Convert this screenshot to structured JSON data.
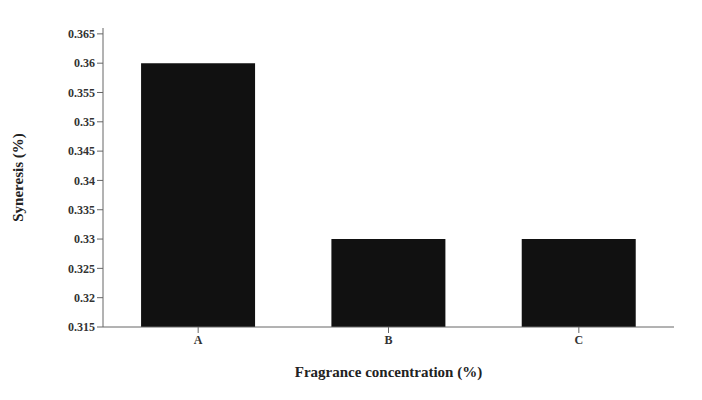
{
  "chart_data": {
    "type": "bar",
    "categories": [
      "A",
      "B",
      "C"
    ],
    "values": [
      0.36,
      0.33,
      0.33
    ],
    "color": "#111111",
    "xlabel": "Fragrance concentration (%)",
    "ylabel": "Syneresis (%)",
    "ylim": [
      0.315,
      0.366
    ],
    "yticks": [
      0.315,
      0.32,
      0.325,
      0.33,
      0.335,
      0.34,
      0.345,
      0.35,
      0.355,
      0.36,
      0.365
    ],
    "grid": false
  }
}
